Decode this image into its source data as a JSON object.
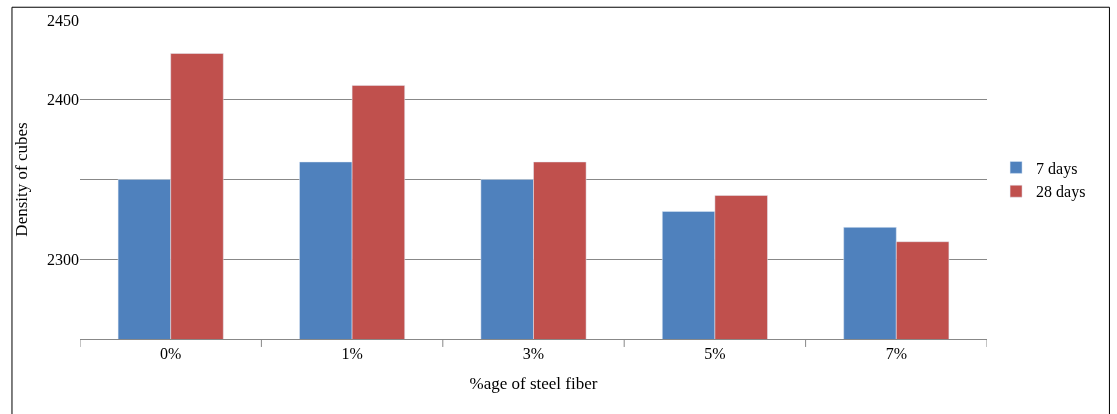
{
  "chart_data": {
    "type": "bar",
    "xlabel": "%age of steel fiber",
    "ylabel": "Density of cubes",
    "categories": [
      "0%",
      "1%",
      "3%",
      "5%",
      "7%"
    ],
    "series": [
      {
        "name": "7 days",
        "color": "#4f81bd",
        "values": [
          2350,
          2361,
          2350,
          2330,
          2320
        ]
      },
      {
        "name": "28 days",
        "color": "#c0504d",
        "values": [
          2429,
          2409,
          2361,
          2340,
          2311
        ]
      }
    ],
    "ylim": [
      2250,
      2450
    ],
    "yticks": [
      2300,
      {
        "value": 2350,
        "label": null
      },
      2400,
      2450
    ],
    "grid": "y",
    "legend": "right"
  }
}
